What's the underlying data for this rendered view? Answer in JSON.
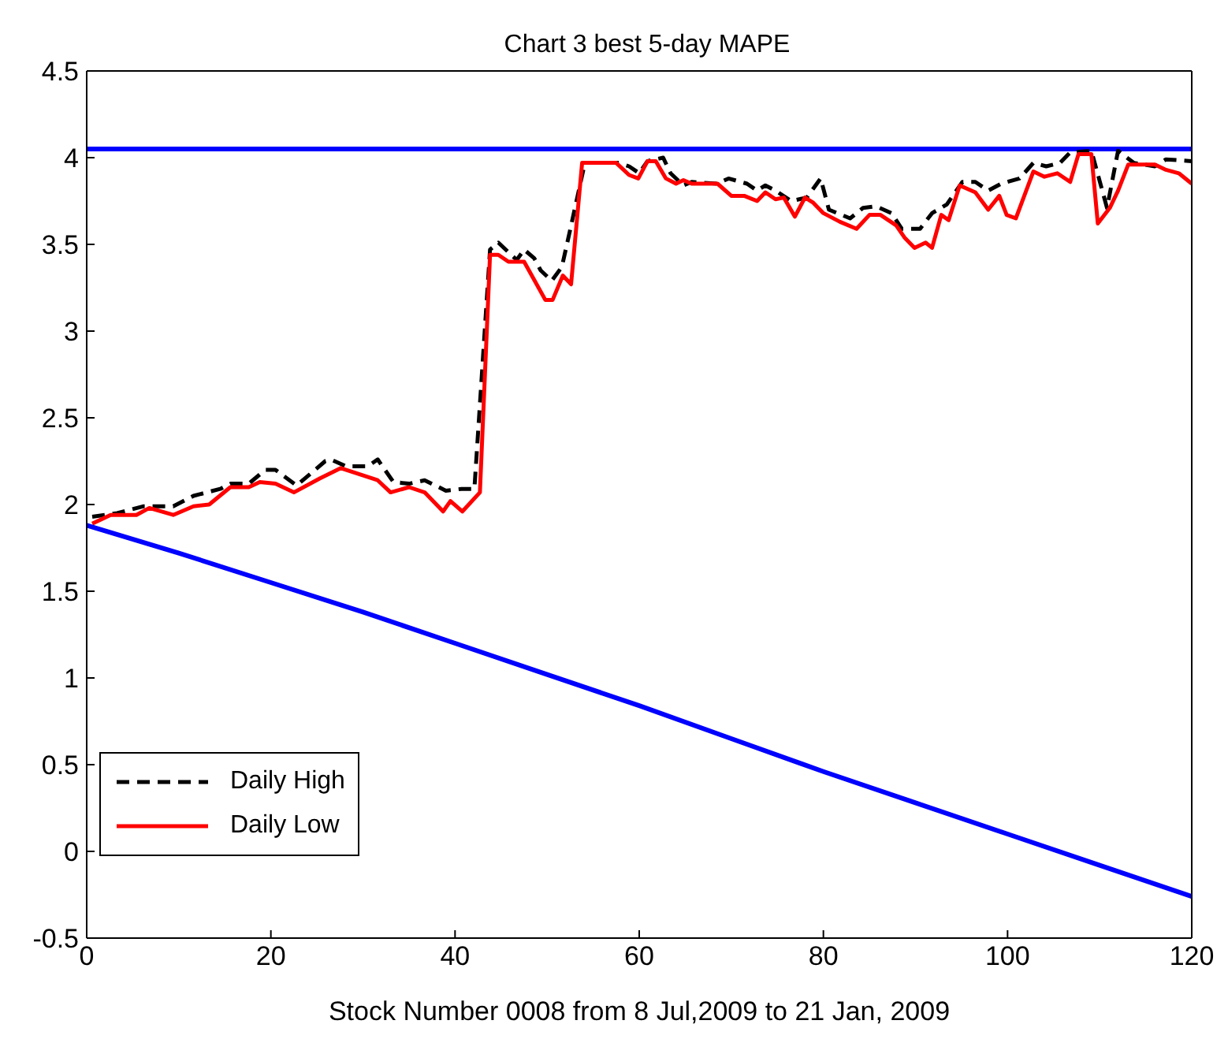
{
  "chart_data": {
    "type": "line",
    "title": "Chart 3 best 5-day MAPE",
    "xlabel": "Stock Number 0008 from 8 Jul,2009 to 21 Jan, 2009",
    "xlim": [
      0,
      120
    ],
    "xticks": [
      0,
      20,
      40,
      60,
      80,
      100,
      120
    ],
    "ylim": [
      -0.5,
      4.5
    ],
    "yticks": [
      -0.5,
      0,
      0.5,
      1,
      1.5,
      2,
      2.5,
      3,
      3.5,
      4,
      4.5
    ],
    "legend": "bottom left",
    "marker": "none",
    "ref_lines": [
      {
        "axis": "y",
        "value": 4.05,
        "color": "#0000ff"
      }
    ],
    "series": [
      {
        "name": "Daily High",
        "color": "#000000",
        "line_style": "dashed",
        "x": [
          0.6,
          3.3,
          6.2,
          9.4,
          11.6,
          14.5,
          15.6,
          17.6,
          19.4,
          20.5,
          22.8,
          25.9,
          26.5,
          28.2,
          30.5,
          31.6,
          33.3,
          35,
          36.7,
          39,
          40.7,
          42.1,
          43.8,
          44.7,
          46.7,
          47.5,
          48.6,
          49.3,
          50.5,
          51.6,
          52.4,
          54.1,
          57.8,
          58.9,
          60,
          60.9,
          62.6,
          63.4,
          64.8,
          65.7,
          68.5,
          69.7,
          71.7,
          72.8,
          73.7,
          74.8,
          76.5,
          78.2,
          79.7,
          80.6,
          82.9,
          84.3,
          85.7,
          87.4,
          88.5,
          90.5,
          91.8,
          93.4,
          95.1,
          96.5,
          97.9,
          99.3,
          101.3,
          102.8,
          104.2,
          105.7,
          106.8,
          109.1,
          110.8,
          112,
          113.7,
          116,
          117.2,
          120
        ],
        "values": [
          1.93,
          1.95,
          1.99,
          1.99,
          2.05,
          2.09,
          2.12,
          2.12,
          2.2,
          2.2,
          2.11,
          2.25,
          2.26,
          2.22,
          2.22,
          2.26,
          2.13,
          2.12,
          2.14,
          2.08,
          2.09,
          2.09,
          3.47,
          3.51,
          3.41,
          3.47,
          3.42,
          3.35,
          3.29,
          3.37,
          3.56,
          3.97,
          3.97,
          3.95,
          3.91,
          3.98,
          4,
          3.91,
          3.84,
          3.86,
          3.85,
          3.88,
          3.85,
          3.81,
          3.84,
          3.81,
          3.75,
          3.77,
          3.88,
          3.7,
          3.65,
          3.71,
          3.72,
          3.68,
          3.59,
          3.59,
          3.68,
          3.73,
          3.86,
          3.86,
          3.81,
          3.85,
          3.88,
          3.97,
          3.95,
          3.97,
          4.03,
          4.04,
          3.71,
          4.04,
          3.97,
          3.95,
          3.99,
          3.98
        ]
      },
      {
        "name": "Daily Low",
        "color": "#ff0000",
        "line_style": "solid",
        "x": [
          0.6,
          2.6,
          5.4,
          6.8,
          9.4,
          11.6,
          13.3,
          15.6,
          17.6,
          18.8,
          20.5,
          22.5,
          25.3,
          27.6,
          29.9,
          31.6,
          33,
          35,
          36.7,
          38.7,
          39.5,
          40.8,
          42.7,
          43.8,
          44.7,
          45.8,
          47.5,
          49.8,
          50.6,
          51.7,
          52.6,
          53.8,
          57.5,
          58.9,
          59.9,
          60.9,
          61.8,
          62.9,
          64,
          64.8,
          65.7,
          68.5,
          70,
          71.4,
          72.8,
          73.7,
          74.8,
          75.7,
          76.9,
          78,
          78.9,
          80,
          81.8,
          83.6,
          85,
          86.2,
          87.9,
          88.8,
          89.9,
          91.1,
          91.8,
          92.8,
          93.6,
          94.8,
          96.5,
          97.9,
          99.1,
          99.9,
          100.9,
          102.8,
          104,
          105.4,
          106.8,
          107.7,
          109.1,
          109.8,
          111.1,
          112,
          113.1,
          116,
          117.2,
          118.6,
          120
        ],
        "values": [
          1.89,
          1.94,
          1.94,
          1.98,
          1.94,
          1.99,
          2,
          2.1,
          2.1,
          2.13,
          2.12,
          2.07,
          2.15,
          2.21,
          2.17,
          2.14,
          2.07,
          2.1,
          2.07,
          1.96,
          2.02,
          1.96,
          2.07,
          3.44,
          3.44,
          3.4,
          3.4,
          3.18,
          3.18,
          3.32,
          3.27,
          3.97,
          3.97,
          3.9,
          3.88,
          3.98,
          3.98,
          3.88,
          3.85,
          3.87,
          3.85,
          3.85,
          3.78,
          3.78,
          3.75,
          3.8,
          3.76,
          3.77,
          3.66,
          3.77,
          3.74,
          3.68,
          3.63,
          3.59,
          3.67,
          3.67,
          3.61,
          3.54,
          3.48,
          3.51,
          3.48,
          3.67,
          3.64,
          3.84,
          3.8,
          3.7,
          3.78,
          3.67,
          3.65,
          3.92,
          3.89,
          3.91,
          3.86,
          4.02,
          4.02,
          3.62,
          3.71,
          3.81,
          3.96,
          3.96,
          3.93,
          3.91,
          3.85
        ]
      },
      {
        "color": "#0000ff",
        "line_style": "solid",
        "x": [
          0,
          10,
          20,
          30,
          40,
          50,
          60,
          70,
          80,
          90,
          100,
          110,
          120
        ],
        "values": [
          1.88,
          1.72,
          1.55,
          1.38,
          1.2,
          1.02,
          0.84,
          0.65,
          0.46,
          0.28,
          0.1,
          -0.08,
          -0.26
        ]
      }
    ]
  }
}
